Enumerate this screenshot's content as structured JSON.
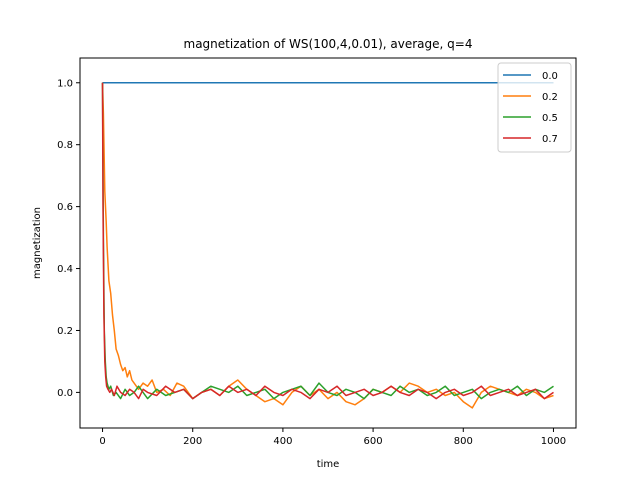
{
  "chart_data": {
    "type": "line",
    "title": "magnetization of WS(100,4,0.01), average, q=4",
    "xlabel": "time",
    "ylabel": "magnetization",
    "xlim": [
      -50,
      1050
    ],
    "ylim": [
      -0.115,
      1.08
    ],
    "xticks": [
      0,
      200,
      400,
      600,
      800,
      1000
    ],
    "yticks": [
      0.0,
      0.2,
      0.4,
      0.6,
      0.8,
      1.0
    ],
    "xtick_labels": [
      "0",
      "200",
      "400",
      "600",
      "800",
      "1000"
    ],
    "ytick_labels": [
      "0.0",
      "0.2",
      "0.4",
      "0.6",
      "0.8",
      "1.0"
    ],
    "grid": false,
    "legend_position": "top-right",
    "series": [
      {
        "name": "0.0",
        "color": "#1f77b4",
        "x": [
          0,
          1000
        ],
        "y": [
          1.0,
          1.0
        ]
      },
      {
        "name": "0.2",
        "color": "#ff7f0e",
        "x": [
          0,
          2,
          5,
          8,
          10,
          14,
          18,
          22,
          26,
          30,
          35,
          40,
          45,
          50,
          55,
          60,
          65,
          70,
          80,
          90,
          100,
          110,
          120,
          135,
          150,
          165,
          180,
          200,
          220,
          240,
          260,
          280,
          300,
          320,
          340,
          360,
          380,
          400,
          420,
          440,
          460,
          480,
          500,
          520,
          540,
          560,
          580,
          600,
          620,
          640,
          660,
          680,
          700,
          720,
          740,
          760,
          780,
          800,
          820,
          840,
          860,
          880,
          900,
          920,
          940,
          960,
          980,
          1000
        ],
        "y": [
          1.0,
          0.9,
          0.65,
          0.55,
          0.47,
          0.36,
          0.32,
          0.25,
          0.2,
          0.14,
          0.12,
          0.09,
          0.07,
          0.08,
          0.05,
          0.07,
          0.04,
          0.03,
          0.01,
          0.03,
          0.02,
          0.04,
          0.0,
          0.01,
          -0.01,
          0.03,
          0.02,
          -0.02,
          0.0,
          0.01,
          -0.01,
          0.02,
          0.04,
          0.01,
          -0.01,
          -0.03,
          -0.02,
          -0.04,
          0.0,
          0.02,
          -0.01,
          0.01,
          -0.02,
          0.0,
          -0.03,
          -0.04,
          -0.02,
          0.01,
          0.0,
          0.02,
          0.0,
          0.03,
          0.02,
          0.0,
          0.01,
          -0.01,
          0.0,
          -0.03,
          -0.05,
          0.0,
          0.02,
          0.01,
          0.0,
          -0.01,
          0.01,
          0.0,
          -0.02,
          -0.01
        ]
      },
      {
        "name": "0.5",
        "color": "#2ca02c",
        "x": [
          0,
          2,
          4,
          6,
          8,
          10,
          14,
          18,
          24,
          30,
          40,
          50,
          60,
          70,
          80,
          90,
          100,
          120,
          140,
          160,
          180,
          200,
          220,
          240,
          260,
          280,
          300,
          320,
          340,
          360,
          380,
          400,
          420,
          440,
          460,
          480,
          500,
          520,
          540,
          560,
          580,
          600,
          620,
          640,
          660,
          680,
          700,
          720,
          740,
          760,
          780,
          800,
          820,
          840,
          860,
          880,
          900,
          920,
          940,
          960,
          980,
          1000
        ],
        "y": [
          1.0,
          0.5,
          0.2,
          0.1,
          0.05,
          0.03,
          0.01,
          0.02,
          -0.01,
          0.0,
          -0.02,
          0.01,
          -0.01,
          0.0,
          0.02,
          0.0,
          -0.02,
          0.01,
          -0.01,
          0.0,
          0.01,
          -0.02,
          0.0,
          0.02,
          0.01,
          0.0,
          0.02,
          -0.01,
          0.0,
          0.01,
          -0.02,
          0.0,
          0.01,
          0.02,
          -0.01,
          0.03,
          0.0,
          -0.01,
          0.01,
          0.0,
          -0.02,
          0.01,
          0.0,
          -0.01,
          0.02,
          0.0,
          0.01,
          -0.01,
          0.0,
          0.02,
          -0.01,
          0.0,
          0.01,
          -0.02,
          0.0,
          0.01,
          0.0,
          0.02,
          -0.01,
          0.01,
          0.0,
          0.02
        ]
      },
      {
        "name": "0.7",
        "color": "#d62728",
        "x": [
          0,
          1,
          3,
          5,
          7,
          9,
          12,
          16,
          20,
          26,
          32,
          40,
          50,
          60,
          70,
          80,
          90,
          100,
          120,
          140,
          160,
          180,
          200,
          220,
          240,
          260,
          280,
          300,
          320,
          340,
          360,
          380,
          400,
          420,
          440,
          460,
          480,
          500,
          520,
          540,
          560,
          580,
          600,
          620,
          640,
          660,
          680,
          700,
          720,
          740,
          760,
          780,
          800,
          820,
          840,
          860,
          880,
          900,
          920,
          940,
          960,
          980,
          1000
        ],
        "y": [
          1.0,
          0.6,
          0.25,
          0.1,
          0.05,
          0.02,
          0.01,
          0.0,
          0.01,
          -0.01,
          0.02,
          0.0,
          -0.01,
          0.01,
          0.0,
          -0.02,
          0.01,
          0.0,
          -0.01,
          0.02,
          0.0,
          0.01,
          -0.02,
          0.0,
          0.01,
          -0.01,
          0.02,
          0.0,
          0.01,
          -0.01,
          0.02,
          0.0,
          -0.01,
          0.01,
          0.0,
          -0.02,
          0.01,
          0.0,
          0.02,
          -0.01,
          0.0,
          0.01,
          -0.01,
          0.0,
          0.02,
          0.0,
          -0.01,
          0.01,
          0.0,
          -0.02,
          0.0,
          0.01,
          -0.01,
          0.0,
          0.02,
          -0.01,
          0.0,
          0.01,
          -0.01,
          0.0,
          0.01,
          -0.02,
          0.0
        ]
      }
    ]
  }
}
